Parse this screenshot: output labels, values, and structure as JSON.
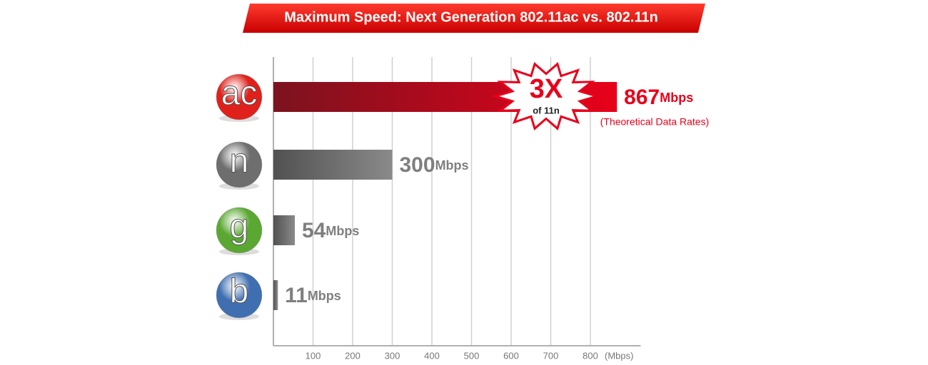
{
  "chart_data": {
    "type": "bar",
    "orientation": "horizontal",
    "title": "Maximum Speed: Next Generation 802.11ac vs. 802.11n",
    "categories": [
      "ac",
      "n",
      "g",
      "b"
    ],
    "values": [
      867,
      300,
      54,
      11
    ],
    "value_unit": "Mbps",
    "colors": [
      "#e8001a",
      "#8a8a8a",
      "#8a8a8a",
      "#8a8a8a"
    ],
    "label_colors": [
      "#e8001a",
      "#7f7f7f",
      "#7f7f7f",
      "#7f7f7f"
    ],
    "icon_colors": [
      "#e0201a",
      "#6e6e6e",
      "#5aa832",
      "#3f6fb0"
    ],
    "xlim": [
      0,
      900
    ],
    "xticks": [
      100,
      200,
      300,
      400,
      500,
      600,
      700,
      800
    ],
    "x_label": "(Mbps)",
    "grid": true,
    "annotations": [
      "3X",
      "of 11n",
      "(Theoretical Data Rates)"
    ]
  }
}
